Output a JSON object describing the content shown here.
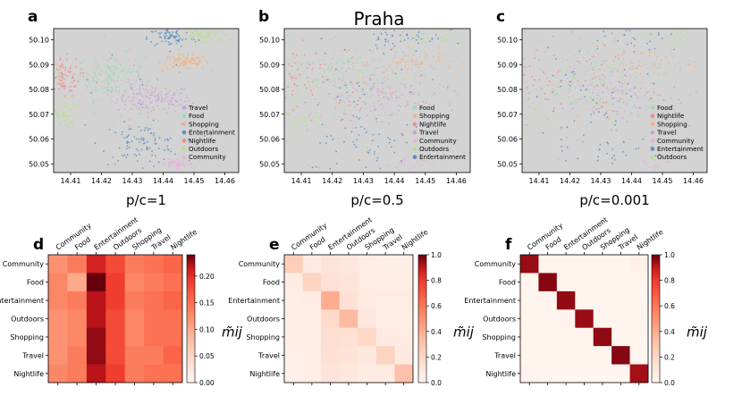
{
  "chart_data": {
    "title": "Praha",
    "maps": [
      {
        "letter": "a",
        "xlabel": "p/c=1",
        "xticks": [
          "14.41",
          "14.42",
          "14.43",
          "14.44",
          "14.45",
          "14.46"
        ],
        "yticks": [
          "50.05",
          "50.06",
          "50.07",
          "50.08",
          "50.09",
          "50.10"
        ],
        "legend": [
          {
            "label": "Travel",
            "color": "#c5a2d8"
          },
          {
            "label": "Food",
            "color": "#9dd8b4"
          },
          {
            "label": "Shopping",
            "color": "#f3b27e"
          },
          {
            "label": "Entertainment",
            "color": "#5b8fc4"
          },
          {
            "label": "Nightlife",
            "color": "#f48a8a"
          },
          {
            "label": "Outdoors",
            "color": "#b7e08a"
          },
          {
            "label": "Community",
            "color": "#e8b0d9"
          }
        ]
      },
      {
        "letter": "b",
        "xlabel": "p/c=0.5",
        "xticks": [
          "14.41",
          "14.42",
          "14.43",
          "14.44",
          "14.45",
          "14.46"
        ],
        "yticks": [
          "50.05",
          "50.06",
          "50.07",
          "50.08",
          "50.09",
          "50.10"
        ],
        "legend": [
          {
            "label": "Food",
            "color": "#9dd8b4"
          },
          {
            "label": "Shopping",
            "color": "#f3b27e"
          },
          {
            "label": "Nightlife",
            "color": "#f48a8a"
          },
          {
            "label": "Travel",
            "color": "#c5a2d8"
          },
          {
            "label": "Community",
            "color": "#e8b0d9"
          },
          {
            "label": "Outdoors",
            "color": "#b7e08a"
          },
          {
            "label": "Entertainment",
            "color": "#5b8fc4"
          }
        ]
      },
      {
        "letter": "c",
        "xlabel": "p/c=0.001",
        "xticks": [
          "14.41",
          "14.42",
          "14.43",
          "14.44",
          "14.45",
          "14.46"
        ],
        "yticks": [
          "50.05",
          "50.06",
          "50.07",
          "50.08",
          "50.09",
          "50.10"
        ],
        "legend": [
          {
            "label": "Food",
            "color": "#9dd8b4"
          },
          {
            "label": "Nightlife",
            "color": "#f48a8a"
          },
          {
            "label": "Shopping",
            "color": "#f3b27e"
          },
          {
            "label": "Travel",
            "color": "#c5a2d8"
          },
          {
            "label": "Community",
            "color": "#e8b0d9"
          },
          {
            "label": "Entertainment",
            "color": "#5b8fc4"
          },
          {
            "label": "Outdoors",
            "color": "#b7e08a"
          }
        ]
      }
    ],
    "heatmaps": [
      {
        "letter": "d",
        "type": "heatmap",
        "categories": [
          "Community",
          "Food",
          "Entertainment",
          "Outdoors",
          "Shopping",
          "Travel",
          "Nightlife"
        ],
        "vmin": 0,
        "vmax": 0.24,
        "colorbar_ticks": [
          "0.00",
          "0.05",
          "0.10",
          "0.15",
          "0.20"
        ],
        "colorbar_tick_values": [
          0,
          0.05,
          0.1,
          0.15,
          0.2
        ],
        "colorbar_label": "m̃ij",
        "matrix": [
          [
            0.12,
            0.14,
            0.21,
            0.18,
            0.14,
            0.15,
            0.16
          ],
          [
            0.13,
            0.1,
            0.24,
            0.19,
            0.13,
            0.14,
            0.15
          ],
          [
            0.13,
            0.14,
            0.22,
            0.19,
            0.14,
            0.15,
            0.16
          ],
          [
            0.12,
            0.13,
            0.22,
            0.18,
            0.13,
            0.15,
            0.15
          ],
          [
            0.12,
            0.13,
            0.23,
            0.18,
            0.13,
            0.15,
            0.15
          ],
          [
            0.12,
            0.14,
            0.23,
            0.18,
            0.14,
            0.14,
            0.16
          ],
          [
            0.13,
            0.14,
            0.22,
            0.19,
            0.14,
            0.15,
            0.15
          ]
        ]
      },
      {
        "letter": "e",
        "type": "heatmap",
        "categories": [
          "Community",
          "Food",
          "Entertainment",
          "Outdoors",
          "Shopping",
          "Travel",
          "Nightlife"
        ],
        "vmin": 0,
        "vmax": 1.0,
        "colorbar_ticks": [
          "0.0",
          "0.2",
          "0.4",
          "0.6",
          "0.8",
          "1.0"
        ],
        "colorbar_tick_values": [
          0,
          0.2,
          0.4,
          0.6,
          0.8,
          1.0
        ],
        "colorbar_label": "m̃ij",
        "matrix": [
          [
            0.25,
            0.08,
            0.12,
            0.1,
            0.06,
            0.05,
            0.05
          ],
          [
            0.06,
            0.22,
            0.14,
            0.12,
            0.07,
            0.06,
            0.06
          ],
          [
            0.05,
            0.07,
            0.4,
            0.14,
            0.08,
            0.07,
            0.07
          ],
          [
            0.05,
            0.06,
            0.18,
            0.35,
            0.09,
            0.07,
            0.06
          ],
          [
            0.05,
            0.06,
            0.16,
            0.14,
            0.2,
            0.08,
            0.07
          ],
          [
            0.04,
            0.05,
            0.15,
            0.13,
            0.09,
            0.22,
            0.08
          ],
          [
            0.04,
            0.05,
            0.12,
            0.1,
            0.07,
            0.07,
            0.32
          ]
        ]
      },
      {
        "letter": "f",
        "type": "heatmap",
        "categories": [
          "Community",
          "Food",
          "Entertainment",
          "Outdoors",
          "Shopping",
          "Travel",
          "Nightlife"
        ],
        "vmin": 0,
        "vmax": 1.0,
        "colorbar_ticks": [
          "0.0",
          "0.2",
          "0.4",
          "0.6",
          "0.8",
          "1.0"
        ],
        "colorbar_tick_values": [
          0,
          0.2,
          0.4,
          0.6,
          0.8,
          1.0
        ],
        "colorbar_label": "m̃ij",
        "matrix": [
          [
            0.95,
            0.01,
            0.01,
            0.01,
            0.01,
            0.01,
            0.03
          ],
          [
            0.01,
            0.97,
            0.01,
            0.01,
            0.01,
            0.01,
            0.01
          ],
          [
            0.01,
            0.01,
            0.96,
            0.01,
            0.01,
            0.01,
            0.01
          ],
          [
            0.01,
            0.01,
            0.02,
            0.95,
            0.01,
            0.01,
            0.01
          ],
          [
            0.01,
            0.01,
            0.01,
            0.01,
            0.96,
            0.01,
            0.01
          ],
          [
            0.01,
            0.01,
            0.01,
            0.01,
            0.01,
            0.97,
            0.01
          ],
          [
            0.02,
            0.01,
            0.01,
            0.01,
            0.01,
            0.01,
            0.94
          ]
        ]
      }
    ]
  }
}
